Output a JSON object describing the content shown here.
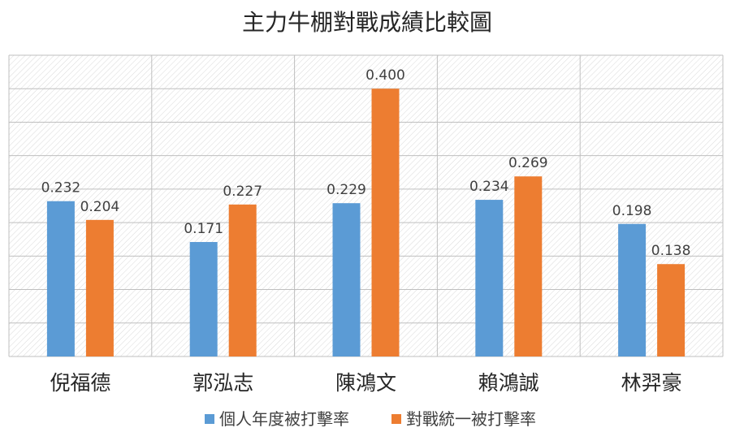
{
  "chart_data": {
    "type": "bar",
    "title": "主力牛棚對戰成績比較圖",
    "categories": [
      "倪福德",
      "郭泓志",
      "陳鴻文",
      "賴鴻誠",
      "林羿豪"
    ],
    "series": [
      {
        "name": "個人年度被打擊率",
        "values": [
          0.232,
          0.171,
          0.229,
          0.234,
          0.198
        ],
        "labels": [
          "0.232",
          "0.171",
          "0.229",
          "0.234",
          "0.198"
        ],
        "color": "#5B9BD5"
      },
      {
        "name": "對戰統一被打擊率",
        "values": [
          0.204,
          0.227,
          0.4,
          0.269,
          0.138
        ],
        "labels": [
          "0.204",
          "0.227",
          "0.400",
          "0.269",
          "0.138"
        ],
        "color": "#ED7D31"
      }
    ],
    "ylim": [
      0,
      0.45
    ],
    "ytick_step": 0.05,
    "y_tick_labels_shown": false,
    "grid": true,
    "plot_background": "hatched",
    "legend": "bottom",
    "xlabel": "",
    "ylabel": ""
  }
}
